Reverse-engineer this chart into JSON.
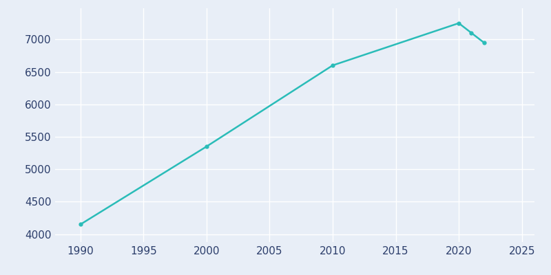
{
  "years": [
    1990,
    2000,
    2010,
    2020,
    2021,
    2022
  ],
  "population": [
    4150,
    5350,
    6600,
    7250,
    7100,
    6950
  ],
  "line_color": "#2abcb8",
  "marker": "o",
  "marker_size": 3.5,
  "line_width": 1.8,
  "background_color": "#e8eef7",
  "grid_color": "#ffffff",
  "xlim": [
    1988,
    2026
  ],
  "ylim": [
    3880,
    7480
  ],
  "yticks": [
    4000,
    4500,
    5000,
    5500,
    6000,
    6500,
    7000
  ],
  "xticks": [
    1990,
    1995,
    2000,
    2005,
    2010,
    2015,
    2020,
    2025
  ],
  "tick_color": "#2c3e6b",
  "tick_fontsize": 11
}
